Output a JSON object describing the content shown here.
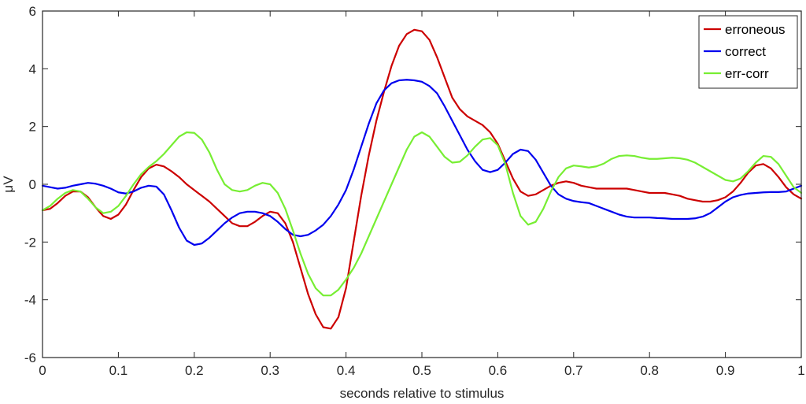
{
  "chart_data": {
    "type": "line",
    "title": "",
    "xlabel": "seconds relative to stimulus",
    "ylabel": "μV",
    "xlim": [
      0,
      1
    ],
    "ylim": [
      -6,
      6
    ],
    "xticks": [
      0,
      0.1,
      0.2,
      0.3,
      0.4,
      0.5,
      0.6,
      0.7,
      0.8,
      0.9,
      1
    ],
    "xtick_labels": [
      "0",
      "0.1",
      "0.2",
      "0.3",
      "0.4",
      "0.5",
      "0.6",
      "0.7",
      "0.8",
      "0.9",
      "1"
    ],
    "yticks": [
      -6,
      -4,
      -2,
      0,
      2,
      4,
      6
    ],
    "ytick_labels": [
      "-6",
      "-4",
      "-2",
      "0",
      "2",
      "4",
      "6"
    ],
    "grid": false,
    "legend_position": "top-right",
    "series": [
      {
        "name": "erroneous",
        "color": "#cc0000",
        "x": [
          0,
          0.01,
          0.02,
          0.03,
          0.04,
          0.05,
          0.06,
          0.07,
          0.08,
          0.09,
          0.1,
          0.11,
          0.12,
          0.13,
          0.14,
          0.15,
          0.16,
          0.17,
          0.18,
          0.19,
          0.2,
          0.21,
          0.22,
          0.23,
          0.24,
          0.25,
          0.26,
          0.27,
          0.28,
          0.29,
          0.3,
          0.31,
          0.32,
          0.33,
          0.34,
          0.35,
          0.36,
          0.37,
          0.38,
          0.39,
          0.4,
          0.41,
          0.42,
          0.43,
          0.44,
          0.45,
          0.46,
          0.47,
          0.48,
          0.49,
          0.5,
          0.51,
          0.52,
          0.53,
          0.54,
          0.55,
          0.56,
          0.57,
          0.58,
          0.59,
          0.6,
          0.61,
          0.62,
          0.63,
          0.64,
          0.65,
          0.66,
          0.67,
          0.68,
          0.69,
          0.7,
          0.71,
          0.72,
          0.73,
          0.74,
          0.75,
          0.76,
          0.77,
          0.78,
          0.79,
          0.8,
          0.81,
          0.82,
          0.83,
          0.84,
          0.85,
          0.86,
          0.87,
          0.88,
          0.89,
          0.9,
          0.91,
          0.92,
          0.93,
          0.94,
          0.95,
          0.96,
          0.97,
          0.98,
          0.99,
          1
        ],
        "y": [
          -0.9,
          -0.85,
          -0.65,
          -0.4,
          -0.25,
          -0.25,
          -0.45,
          -0.8,
          -1.1,
          -1.2,
          -1.05,
          -0.7,
          -0.2,
          0.25,
          0.55,
          0.68,
          0.62,
          0.45,
          0.25,
          0.0,
          -0.2,
          -0.4,
          -0.6,
          -0.85,
          -1.1,
          -1.35,
          -1.45,
          -1.45,
          -1.3,
          -1.1,
          -0.95,
          -1.0,
          -1.35,
          -2.0,
          -2.9,
          -3.8,
          -4.5,
          -4.95,
          -5.0,
          -4.6,
          -3.6,
          -2.0,
          -0.4,
          1.0,
          2.2,
          3.2,
          4.1,
          4.8,
          5.2,
          5.35,
          5.3,
          5.0,
          4.4,
          3.7,
          3.0,
          2.6,
          2.35,
          2.2,
          2.05,
          1.8,
          1.4,
          0.8,
          0.2,
          -0.25,
          -0.4,
          -0.35,
          -0.2,
          -0.05,
          0.05,
          0.1,
          0.05,
          -0.05,
          -0.1,
          -0.15,
          -0.15,
          -0.15,
          -0.15,
          -0.15,
          -0.2,
          -0.25,
          -0.3,
          -0.3,
          -0.3,
          -0.35,
          -0.4,
          -0.5,
          -0.55,
          -0.6,
          -0.6,
          -0.55,
          -0.45,
          -0.25,
          0.05,
          0.4,
          0.65,
          0.7,
          0.55,
          0.25,
          -0.1,
          -0.35,
          -0.5
        ]
      },
      {
        "name": "correct",
        "color": "#0000ee",
        "x": [
          0,
          0.01,
          0.02,
          0.03,
          0.04,
          0.05,
          0.06,
          0.07,
          0.08,
          0.09,
          0.1,
          0.11,
          0.12,
          0.13,
          0.14,
          0.15,
          0.16,
          0.17,
          0.18,
          0.19,
          0.2,
          0.21,
          0.22,
          0.23,
          0.24,
          0.25,
          0.26,
          0.27,
          0.28,
          0.29,
          0.3,
          0.31,
          0.32,
          0.33,
          0.34,
          0.35,
          0.36,
          0.37,
          0.38,
          0.39,
          0.4,
          0.41,
          0.42,
          0.43,
          0.44,
          0.45,
          0.46,
          0.47,
          0.48,
          0.49,
          0.5,
          0.51,
          0.52,
          0.53,
          0.54,
          0.55,
          0.56,
          0.57,
          0.58,
          0.59,
          0.6,
          0.61,
          0.62,
          0.63,
          0.64,
          0.65,
          0.66,
          0.67,
          0.68,
          0.69,
          0.7,
          0.71,
          0.72,
          0.73,
          0.74,
          0.75,
          0.76,
          0.77,
          0.78,
          0.79,
          0.8,
          0.81,
          0.82,
          0.83,
          0.84,
          0.85,
          0.86,
          0.87,
          0.88,
          0.89,
          0.9,
          0.91,
          0.92,
          0.93,
          0.94,
          0.95,
          0.96,
          0.97,
          0.98,
          0.99,
          1
        ],
        "y": [
          -0.05,
          -0.1,
          -0.15,
          -0.12,
          -0.05,
          0.0,
          0.05,
          0.02,
          -0.05,
          -0.15,
          -0.28,
          -0.32,
          -0.25,
          -0.12,
          -0.05,
          -0.08,
          -0.35,
          -0.9,
          -1.5,
          -1.95,
          -2.1,
          -2.05,
          -1.85,
          -1.6,
          -1.35,
          -1.15,
          -1.0,
          -0.95,
          -0.95,
          -1.0,
          -1.1,
          -1.3,
          -1.55,
          -1.75,
          -1.8,
          -1.75,
          -1.6,
          -1.4,
          -1.1,
          -0.7,
          -0.2,
          0.5,
          1.3,
          2.1,
          2.8,
          3.25,
          3.5,
          3.6,
          3.62,
          3.6,
          3.55,
          3.4,
          3.15,
          2.7,
          2.2,
          1.7,
          1.2,
          0.8,
          0.5,
          0.42,
          0.5,
          0.75,
          1.05,
          1.2,
          1.15,
          0.85,
          0.4,
          -0.05,
          -0.35,
          -0.5,
          -0.58,
          -0.62,
          -0.65,
          -0.75,
          -0.85,
          -0.95,
          -1.05,
          -1.12,
          -1.15,
          -1.15,
          -1.15,
          -1.17,
          -1.18,
          -1.2,
          -1.2,
          -1.2,
          -1.18,
          -1.12,
          -1.0,
          -0.8,
          -0.6,
          -0.45,
          -0.37,
          -0.32,
          -0.3,
          -0.28,
          -0.27,
          -0.27,
          -0.25,
          -0.15,
          -0.05
        ]
      },
      {
        "name": "err-corr",
        "color": "#77ee33",
        "x": [
          0,
          0.01,
          0.02,
          0.03,
          0.04,
          0.05,
          0.06,
          0.07,
          0.08,
          0.09,
          0.1,
          0.11,
          0.12,
          0.13,
          0.14,
          0.15,
          0.16,
          0.17,
          0.18,
          0.19,
          0.2,
          0.21,
          0.22,
          0.23,
          0.24,
          0.25,
          0.26,
          0.27,
          0.28,
          0.29,
          0.3,
          0.31,
          0.32,
          0.33,
          0.34,
          0.35,
          0.36,
          0.37,
          0.38,
          0.39,
          0.4,
          0.41,
          0.42,
          0.43,
          0.44,
          0.45,
          0.46,
          0.47,
          0.48,
          0.49,
          0.5,
          0.51,
          0.52,
          0.53,
          0.54,
          0.55,
          0.56,
          0.57,
          0.58,
          0.59,
          0.6,
          0.61,
          0.62,
          0.63,
          0.64,
          0.65,
          0.66,
          0.67,
          0.68,
          0.69,
          0.7,
          0.71,
          0.72,
          0.73,
          0.74,
          0.75,
          0.76,
          0.77,
          0.78,
          0.79,
          0.8,
          0.81,
          0.82,
          0.83,
          0.84,
          0.85,
          0.86,
          0.87,
          0.88,
          0.89,
          0.9,
          0.91,
          0.92,
          0.93,
          0.94,
          0.95,
          0.96,
          0.97,
          0.98,
          0.99,
          1
        ],
        "y": [
          -0.9,
          -0.75,
          -0.5,
          -0.3,
          -0.2,
          -0.25,
          -0.5,
          -0.8,
          -1.0,
          -0.95,
          -0.75,
          -0.4,
          0.0,
          0.35,
          0.6,
          0.8,
          1.05,
          1.35,
          1.65,
          1.8,
          1.78,
          1.55,
          1.1,
          0.5,
          0.0,
          -0.2,
          -0.25,
          -0.2,
          -0.05,
          0.05,
          0.0,
          -0.3,
          -0.85,
          -1.6,
          -2.4,
          -3.1,
          -3.6,
          -3.85,
          -3.85,
          -3.65,
          -3.3,
          -2.9,
          -2.4,
          -1.8,
          -1.2,
          -0.6,
          0.0,
          0.6,
          1.2,
          1.65,
          1.8,
          1.65,
          1.3,
          0.95,
          0.75,
          0.78,
          1.0,
          1.3,
          1.55,
          1.6,
          1.35,
          0.7,
          -0.3,
          -1.1,
          -1.4,
          -1.3,
          -0.85,
          -0.25,
          0.25,
          0.55,
          0.65,
          0.62,
          0.58,
          0.62,
          0.72,
          0.88,
          0.98,
          1.0,
          0.98,
          0.92,
          0.88,
          0.88,
          0.9,
          0.92,
          0.9,
          0.85,
          0.75,
          0.6,
          0.45,
          0.3,
          0.15,
          0.1,
          0.2,
          0.45,
          0.75,
          0.98,
          0.95,
          0.7,
          0.3,
          -0.1,
          -0.3
        ]
      }
    ]
  }
}
